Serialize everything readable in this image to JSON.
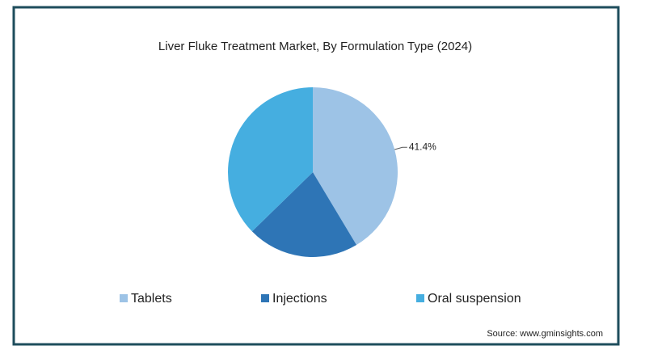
{
  "chart_data": {
    "type": "pie",
    "title": "Liver Fluke Treatment Market, By Formulation Type (2024)",
    "categories": [
      "Tablets",
      "Injections",
      "Oral suspension"
    ],
    "values": [
      41.4,
      21.3,
      37.3
    ],
    "value_labels": [
      "41.4%",
      null,
      null
    ],
    "colors": [
      "#9dc3e6",
      "#2e75b6",
      "#45aee0"
    ],
    "source": "Source: www.gminsights.com"
  }
}
